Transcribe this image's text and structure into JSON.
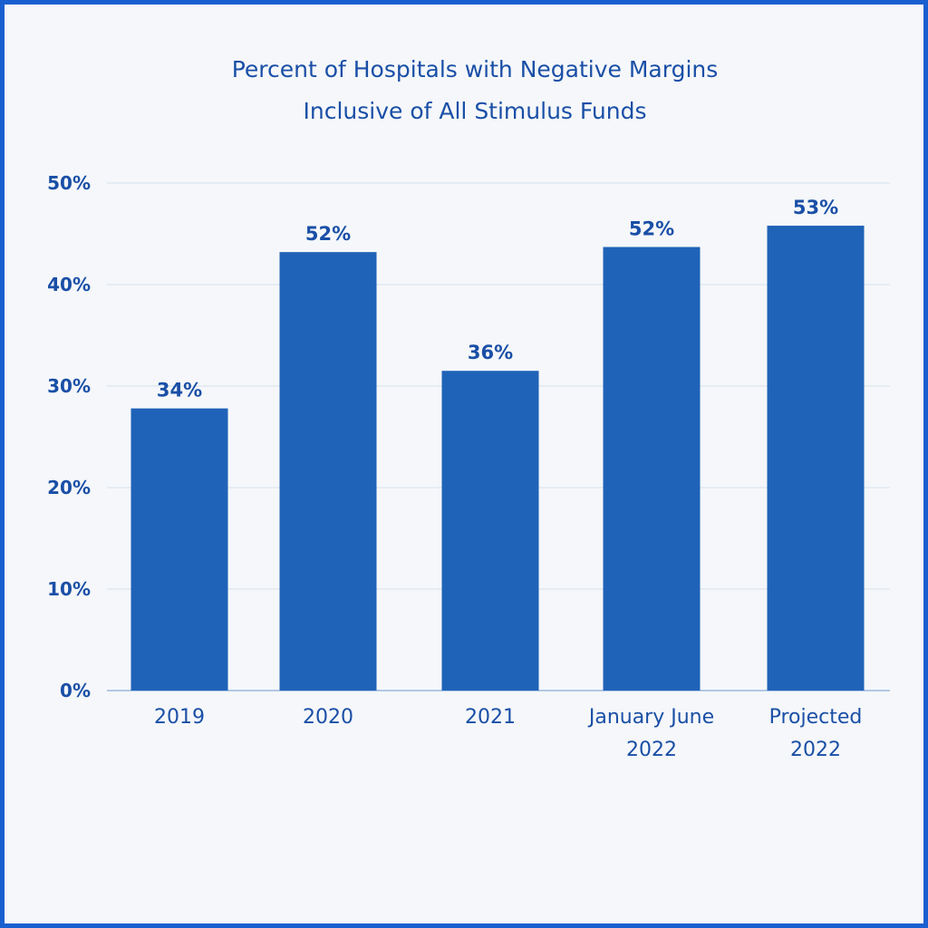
{
  "chart_data": {
    "type": "bar",
    "title": [
      "Percent of Hospitals with Negative Margins",
      "Inclusive of All Stimulus Funds"
    ],
    "xlabel": "",
    "ylabel": "",
    "categories": [
      [
        "2019"
      ],
      [
        "2020"
      ],
      [
        "2021"
      ],
      [
        "January June",
        "2022"
      ],
      [
        "Projected",
        "2022"
      ]
    ],
    "values": [
      34,
      52,
      36,
      52,
      53
    ],
    "data_labels": [
      "34%",
      "52%",
      "36%",
      "52%",
      "53%"
    ],
    "bar_heights": [
      27.8,
      43.2,
      31.5,
      43.7,
      45.8
    ],
    "ylim": [
      0,
      50
    ],
    "yticks": [
      "0%",
      "10%",
      "20%",
      "30%",
      "40%",
      "50%"
    ],
    "grid": true,
    "legend": "none",
    "colors": {
      "bar": "#1f63b8",
      "text": "#1a4fa6",
      "border": "#1a5fd0",
      "grid": "#d6e0ec",
      "background": "#f5f7fa"
    }
  }
}
